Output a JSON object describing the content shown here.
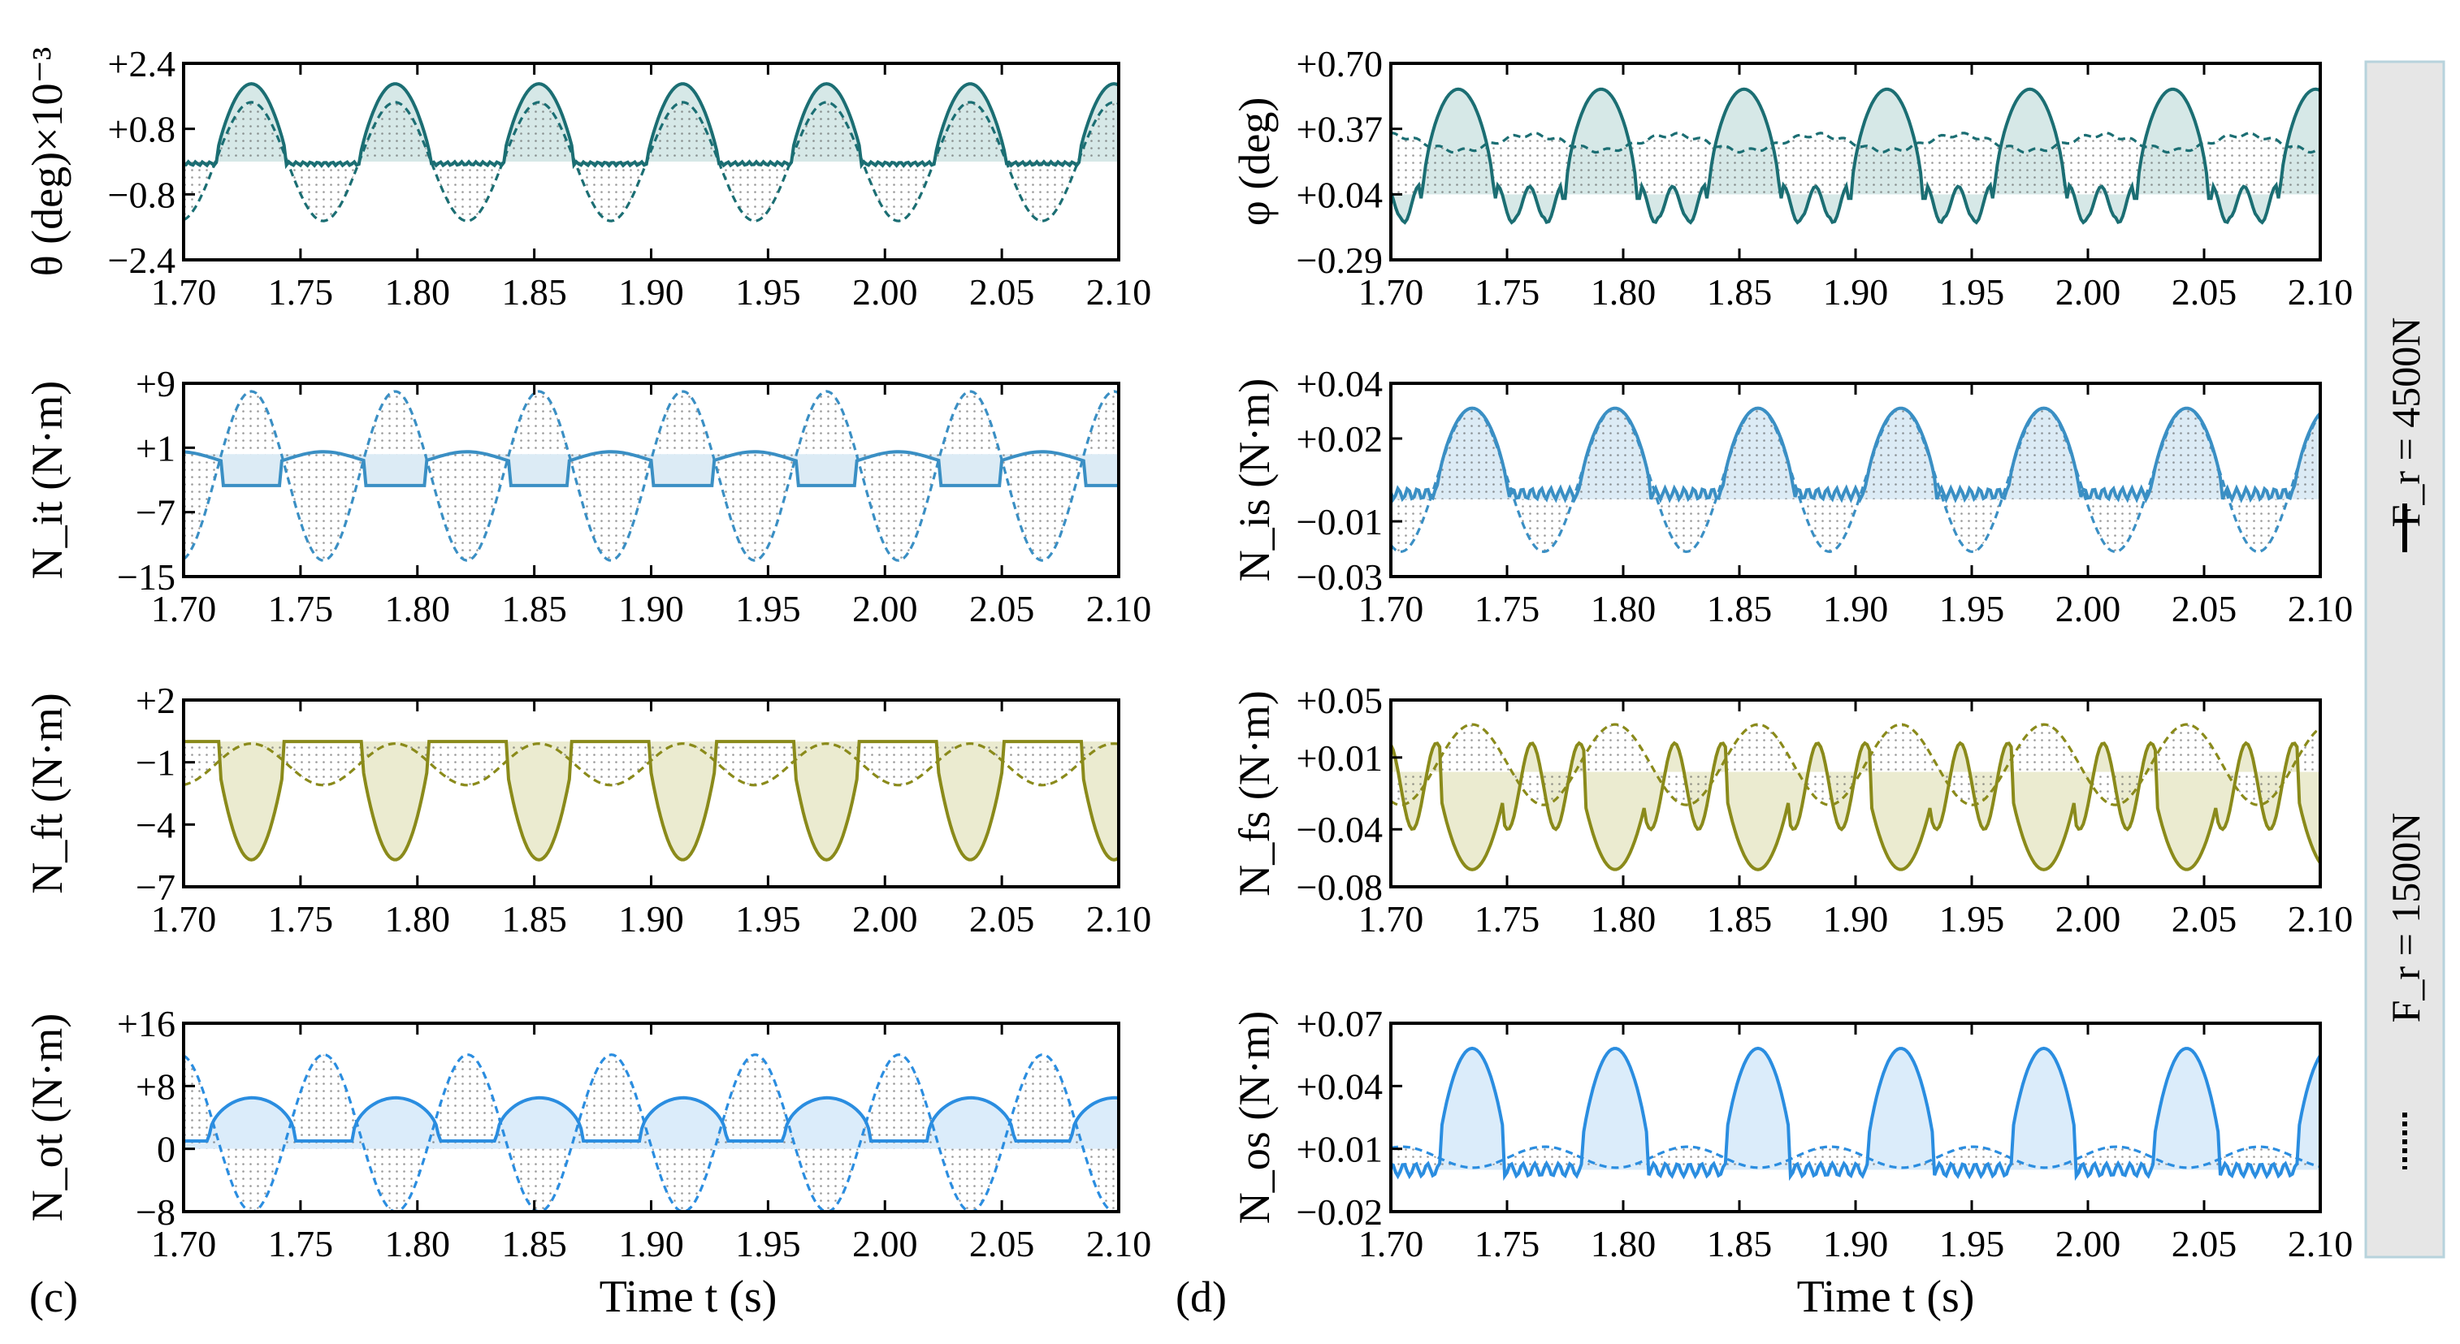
{
  "figure": {
    "panel_labels": [
      "(c)",
      "(d)"
    ],
    "x_axis_label": "Time t (s)",
    "legend": {
      "entries": [
        {
          "label": "F_r = 4500N",
          "style": "solid"
        },
        {
          "label": "F_r = 1500N",
          "style": "dashed"
        }
      ]
    }
  },
  "chart_data": [
    {
      "id": "theta",
      "type": "line",
      "ylabel": "θ (deg)×10⁻³",
      "xlim": [
        1.7,
        2.1
      ],
      "ylim": [
        -2.4,
        2.4
      ],
      "xticks": [
        "1.70",
        "1.75",
        "1.80",
        "1.85",
        "1.90",
        "1.95",
        "2.00",
        "2.05",
        "2.10"
      ],
      "yticks": [
        {
          "v": 2.4,
          "t": "+2.4"
        },
        {
          "v": 0.8,
          "t": "+0.8"
        },
        {
          "v": -0.8,
          "t": "−0.8"
        },
        {
          "v": -2.4,
          "t": "−2.4"
        }
      ],
      "color": "#1b6e73",
      "fill": "#cfe4e3",
      "period": 0.0615,
      "phase": 1.729,
      "series": [
        {
          "name": "F_r = 4500N",
          "style": "solid",
          "kind": "rect_cos",
          "base": 0,
          "amp": 1.9,
          "low": -0.05,
          "wiggle": 0.15
        },
        {
          "name": "F_r = 1500N",
          "style": "dashed",
          "kind": "cos",
          "base": 0,
          "amp": 1.45,
          "neg_amp": 1.45
        }
      ]
    },
    {
      "id": "phi",
      "type": "line",
      "ylabel": "φ (deg)",
      "xlim": [
        1.7,
        2.1
      ],
      "ylim": [
        -0.29,
        0.7
      ],
      "xticks": [
        "1.70",
        "1.75",
        "1.80",
        "1.85",
        "1.90",
        "1.95",
        "2.00",
        "2.05",
        "2.10"
      ],
      "yticks": [
        {
          "v": 0.7,
          "t": "+0.70"
        },
        {
          "v": 0.37,
          "t": "+0.37"
        },
        {
          "v": 0.04,
          "t": "+0.04"
        },
        {
          "v": -0.29,
          "t": "−0.29"
        }
      ],
      "color": "#1b6e73",
      "fill": "#cfe4e3",
      "period": 0.0615,
      "phase": 1.729,
      "series": [
        {
          "name": "F_r = 4500N",
          "style": "solid",
          "kind": "phi",
          "base": 0.02,
          "amp": 0.55,
          "low": -0.12
        },
        {
          "name": "F_r = 1500N",
          "style": "dashed",
          "kind": "ripple",
          "base": 0.3,
          "amp": 0.04
        }
      ]
    },
    {
      "id": "Nit",
      "type": "line",
      "ylabel": "N_it (N·m)",
      "xlim": [
        1.7,
        2.1
      ],
      "ylim": [
        -15,
        9
      ],
      "xticks": [
        "1.70",
        "1.75",
        "1.80",
        "1.85",
        "1.90",
        "1.95",
        "2.00",
        "2.05",
        "2.10"
      ],
      "yticks": [
        {
          "v": 9,
          "t": "+9"
        },
        {
          "v": 1,
          "t": "+1"
        },
        {
          "v": -7,
          "t": "−7"
        },
        {
          "v": -15,
          "t": "−15"
        }
      ],
      "color": "#3a8fc4",
      "fill": "#d6e7f3",
      "period": 0.0615,
      "phase": 1.729,
      "series": [
        {
          "name": "F_r = 4500N",
          "style": "solid",
          "kind": "nit",
          "base": 0,
          "amp": 0,
          "low": -3.7
        },
        {
          "name": "F_r = 1500N",
          "style": "dashed",
          "kind": "cos",
          "base": -2.5,
          "amp": 10.5,
          "neg_amp": 10.5
        }
      ]
    },
    {
      "id": "Nis",
      "type": "line",
      "ylabel": "N_is (N·m)",
      "xlim": [
        1.7,
        2.1
      ],
      "ylim": [
        -0.03,
        0.04
      ],
      "xticks": [
        "1.70",
        "1.75",
        "1.80",
        "1.85",
        "1.90",
        "1.95",
        "2.00",
        "2.05",
        "2.10"
      ],
      "yticks": [
        {
          "v": 0.04,
          "t": "+0.04"
        },
        {
          "v": 0.02,
          "t": "+0.02"
        },
        {
          "v": -0.01,
          "t": "−0.01"
        },
        {
          "v": -0.03,
          "t": "−0.03"
        }
      ],
      "color": "#3a8fc4",
      "fill": "#d6e7f3",
      "period": 0.0615,
      "phase": 1.735,
      "series": [
        {
          "name": "F_r = 4500N",
          "style": "solid",
          "kind": "nis",
          "base": 0.0,
          "amp": 0.031,
          "low": 0.0
        },
        {
          "name": "F_r = 1500N",
          "style": "dashed",
          "kind": "cos",
          "base": 0.005,
          "amp": 0.026,
          "neg_amp": 0.026
        }
      ]
    },
    {
      "id": "Nft",
      "type": "line",
      "ylabel": "N_ft (N·m)",
      "xlim": [
        1.7,
        2.1
      ],
      "ylim": [
        -7,
        2
      ],
      "xticks": [
        "1.70",
        "1.75",
        "1.80",
        "1.85",
        "1.90",
        "1.95",
        "2.00",
        "2.05",
        "2.10"
      ],
      "yticks": [
        {
          "v": 2,
          "t": "+2"
        },
        {
          "v": -1,
          "t": "−1"
        },
        {
          "v": -4,
          "t": "−4"
        },
        {
          "v": -7,
          "t": "−7"
        }
      ],
      "color": "#8a8a1a",
      "fill": "#e8e8c8",
      "period": 0.0615,
      "phase": 1.729,
      "series": [
        {
          "name": "F_r = 4500N",
          "style": "solid",
          "kind": "nft",
          "base": 0,
          "amp": -5.7,
          "low": 0
        },
        {
          "name": "F_r = 1500N",
          "style": "dashed",
          "kind": "cos",
          "base": -1.1,
          "amp": 1.0,
          "neg_amp": 1.0
        }
      ]
    },
    {
      "id": "Nfs",
      "type": "line",
      "ylabel": "N_fs (N·m)",
      "xlim": [
        1.7,
        2.1
      ],
      "ylim": [
        -0.08,
        0.05
      ],
      "xticks": [
        "1.70",
        "1.75",
        "1.80",
        "1.85",
        "1.90",
        "1.95",
        "2.00",
        "2.05",
        "2.10"
      ],
      "yticks": [
        {
          "v": 0.05,
          "t": "+0.05"
        },
        {
          "v": 0.01,
          "t": "+0.01"
        },
        {
          "v": -0.04,
          "t": "−0.04"
        },
        {
          "v": -0.08,
          "t": "−0.08"
        }
      ],
      "color": "#8a8a1a",
      "fill": "#e8e8c8",
      "period": 0.0615,
      "phase": 1.735,
      "series": [
        {
          "name": "F_r = 4500N",
          "style": "solid",
          "kind": "nfs",
          "base": 0.0,
          "amp": 0.068,
          "low": 0.0
        },
        {
          "name": "F_r = 1500N",
          "style": "dashed",
          "kind": "cos",
          "base": 0.005,
          "amp": 0.028,
          "neg_amp": 0.028
        }
      ]
    },
    {
      "id": "Not",
      "type": "line",
      "ylabel": "N_ot (N·m)",
      "xlim": [
        1.7,
        2.1
      ],
      "ylim": [
        -8,
        16
      ],
      "xticks": [
        "1.70",
        "1.75",
        "1.80",
        "1.85",
        "1.90",
        "1.95",
        "2.00",
        "2.05",
        "2.10"
      ],
      "yticks": [
        {
          "v": 16,
          "t": "+16"
        },
        {
          "v": 8,
          "t": "+8"
        },
        {
          "v": 0,
          "t": "0"
        },
        {
          "v": -8,
          "t": "−8"
        }
      ],
      "color": "#2a8de0",
      "fill": "#d5e9f9",
      "period": 0.0615,
      "phase": 1.76,
      "series": [
        {
          "name": "F_r = 4500N",
          "style": "solid",
          "kind": "not",
          "base": 1.0,
          "amp": 5.5,
          "low": 1.0
        },
        {
          "name": "F_r = 1500N",
          "style": "dashed",
          "kind": "cos",
          "base": 2.0,
          "amp": 10.0,
          "neg_amp": 10.0
        }
      ]
    },
    {
      "id": "Nos",
      "type": "line",
      "ylabel": "N_os (N·m)",
      "xlim": [
        1.7,
        2.1
      ],
      "ylim": [
        -0.02,
        0.07
      ],
      "xticks": [
        "1.70",
        "1.75",
        "1.80",
        "1.85",
        "1.90",
        "1.95",
        "2.00",
        "2.05",
        "2.10"
      ],
      "yticks": [
        {
          "v": 0.07,
          "t": "+0.07"
        },
        {
          "v": 0.04,
          "t": "+0.04"
        },
        {
          "v": 0.01,
          "t": "+0.01"
        },
        {
          "v": -0.02,
          "t": "−0.02"
        }
      ],
      "color": "#2a8de0",
      "fill": "#d5e9f9",
      "period": 0.0615,
      "phase": 1.735,
      "series": [
        {
          "name": "F_r = 4500N",
          "style": "solid",
          "kind": "nos",
          "base": 0.0,
          "amp": 0.058,
          "low": 0.0
        },
        {
          "name": "F_r = 1500N",
          "style": "dashed",
          "kind": "ripple2",
          "base": 0.006,
          "amp": 0.005
        }
      ]
    }
  ]
}
